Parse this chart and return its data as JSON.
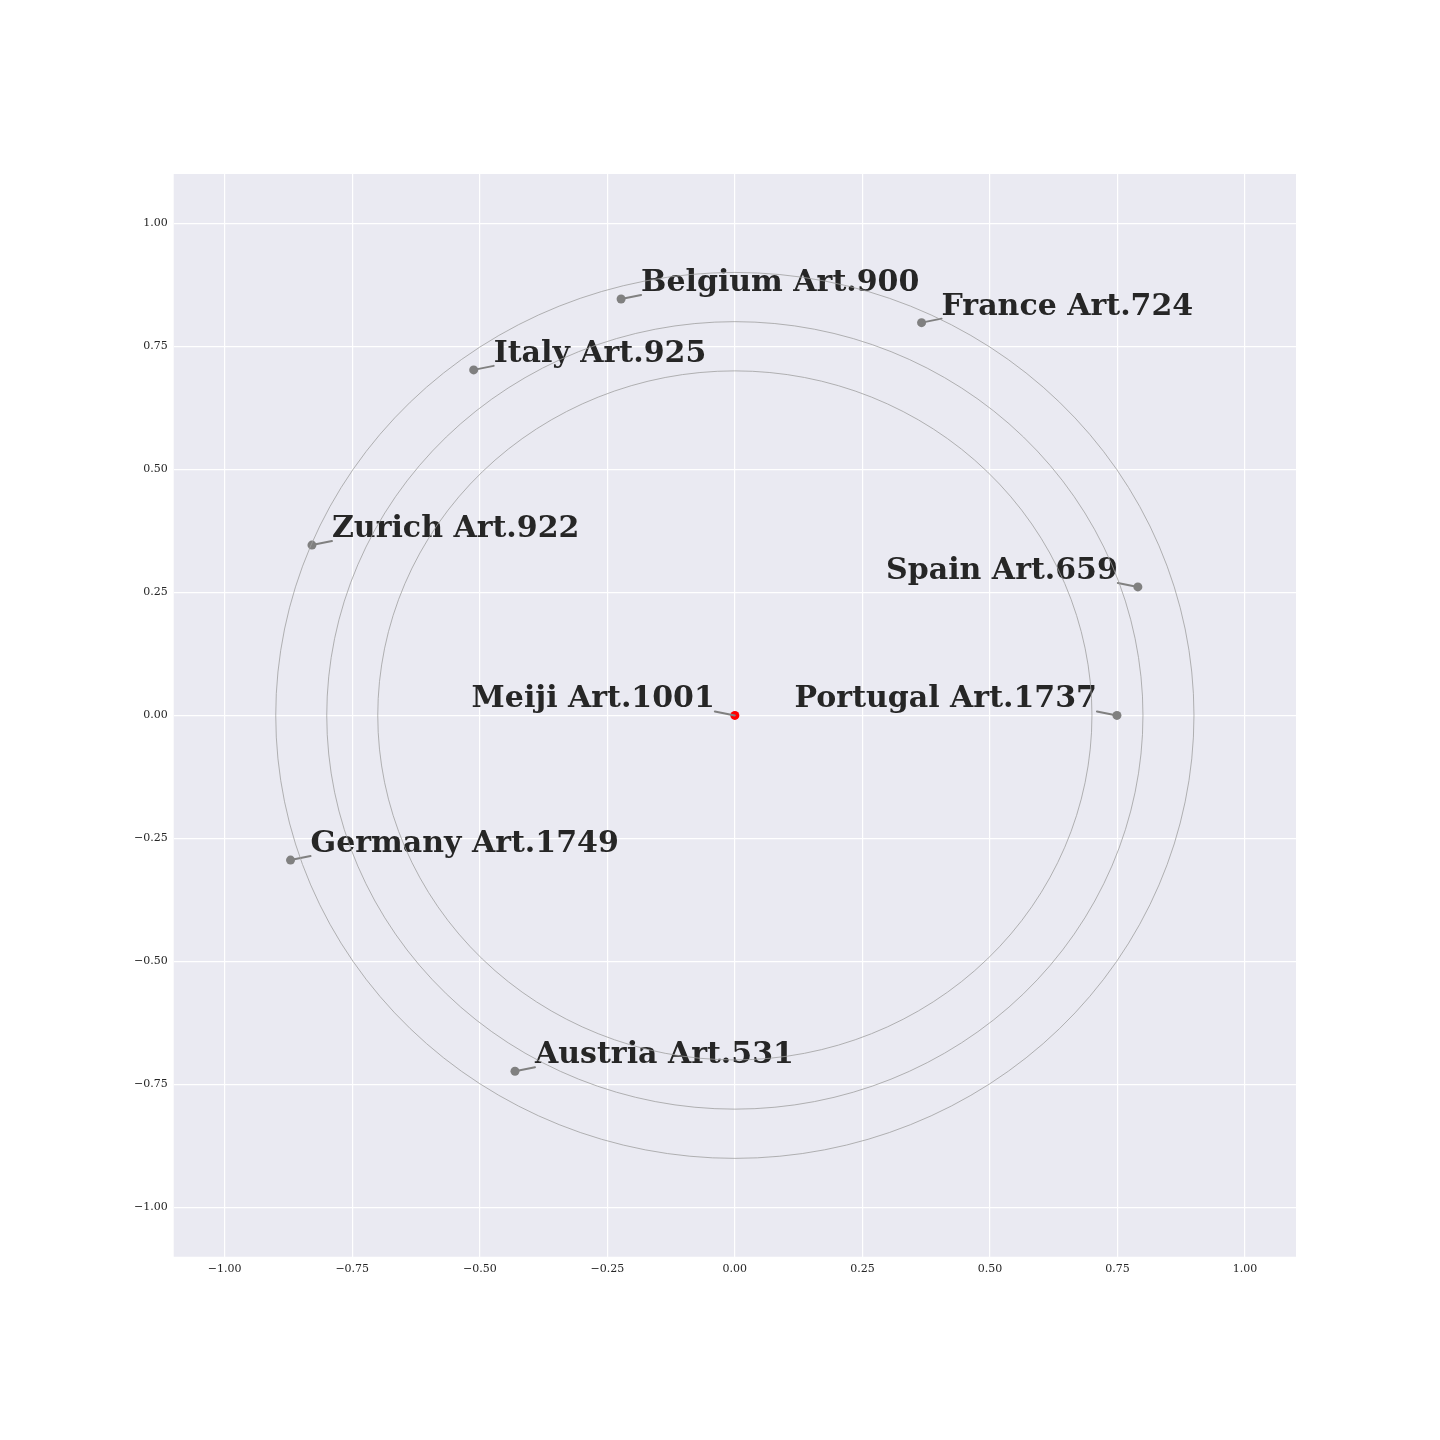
{
  "chart_data": {
    "type": "scatter",
    "xlim": [
      -1.1,
      1.1
    ],
    "ylim": [
      -1.1,
      1.1
    ],
    "xticks": [
      {
        "value": -1,
        "label": "−1.00"
      },
      {
        "value": -0.75,
        "label": "−0.75"
      },
      {
        "value": -0.5,
        "label": "−0.50"
      },
      {
        "value": -0.25,
        "label": "−0.25"
      },
      {
        "value": 0,
        "label": "0.00"
      },
      {
        "value": 0.25,
        "label": "0.25"
      },
      {
        "value": 0.5,
        "label": "0.50"
      },
      {
        "value": 0.75,
        "label": "0.75"
      },
      {
        "value": 1,
        "label": "1.00"
      }
    ],
    "yticks": [
      {
        "value": -1,
        "label": "−1.00"
      },
      {
        "value": -0.75,
        "label": "−0.75"
      },
      {
        "value": -0.5,
        "label": "−0.50"
      },
      {
        "value": -0.25,
        "label": "−0.25"
      },
      {
        "value": 0,
        "label": "0.00"
      },
      {
        "value": 0.25,
        "label": "0.25"
      },
      {
        "value": 0.5,
        "label": "0.50"
      },
      {
        "value": 0.75,
        "label": "0.75"
      },
      {
        "value": 1,
        "label": "1.00"
      }
    ],
    "grid": true,
    "marker": "circle",
    "series": [
      {
        "color": "#808080",
        "x": [
          -0.223,
          0.366,
          -0.512,
          -0.829,
          0.79,
          0.749,
          -0.871,
          -0.431
        ],
        "values": [
          0.846,
          0.798,
          0.702,
          0.346,
          0.261,
          0,
          -0.294,
          -0.723
        ]
      },
      {
        "color": "#ff0000",
        "x": [
          0
        ],
        "values": [
          0
        ]
      }
    ],
    "annotations": [
      {
        "text": "Belgium Art.900",
        "x": -0.223,
        "y": 0.846
      },
      {
        "text": "France Art.724",
        "x": 0.366,
        "y": 0.798
      },
      {
        "text": "Italy Art.925",
        "x": -0.512,
        "y": 0.702
      },
      {
        "text": "Zurich Art.922",
        "x": -0.829,
        "y": 0.346
      },
      {
        "text": "Spain Art.659",
        "x": 0.79,
        "y": 0.261
      },
      {
        "text": "Portugal Art.1737",
        "x": 0.749,
        "y": 0
      },
      {
        "text": "Germany Art.1749",
        "x": -0.871,
        "y": -0.294
      },
      {
        "text": "Austria Art.531",
        "x": -0.431,
        "y": -0.723
      },
      {
        "text": "Meiji Art.1001",
        "x": 0,
        "y": 0
      }
    ]
  }
}
